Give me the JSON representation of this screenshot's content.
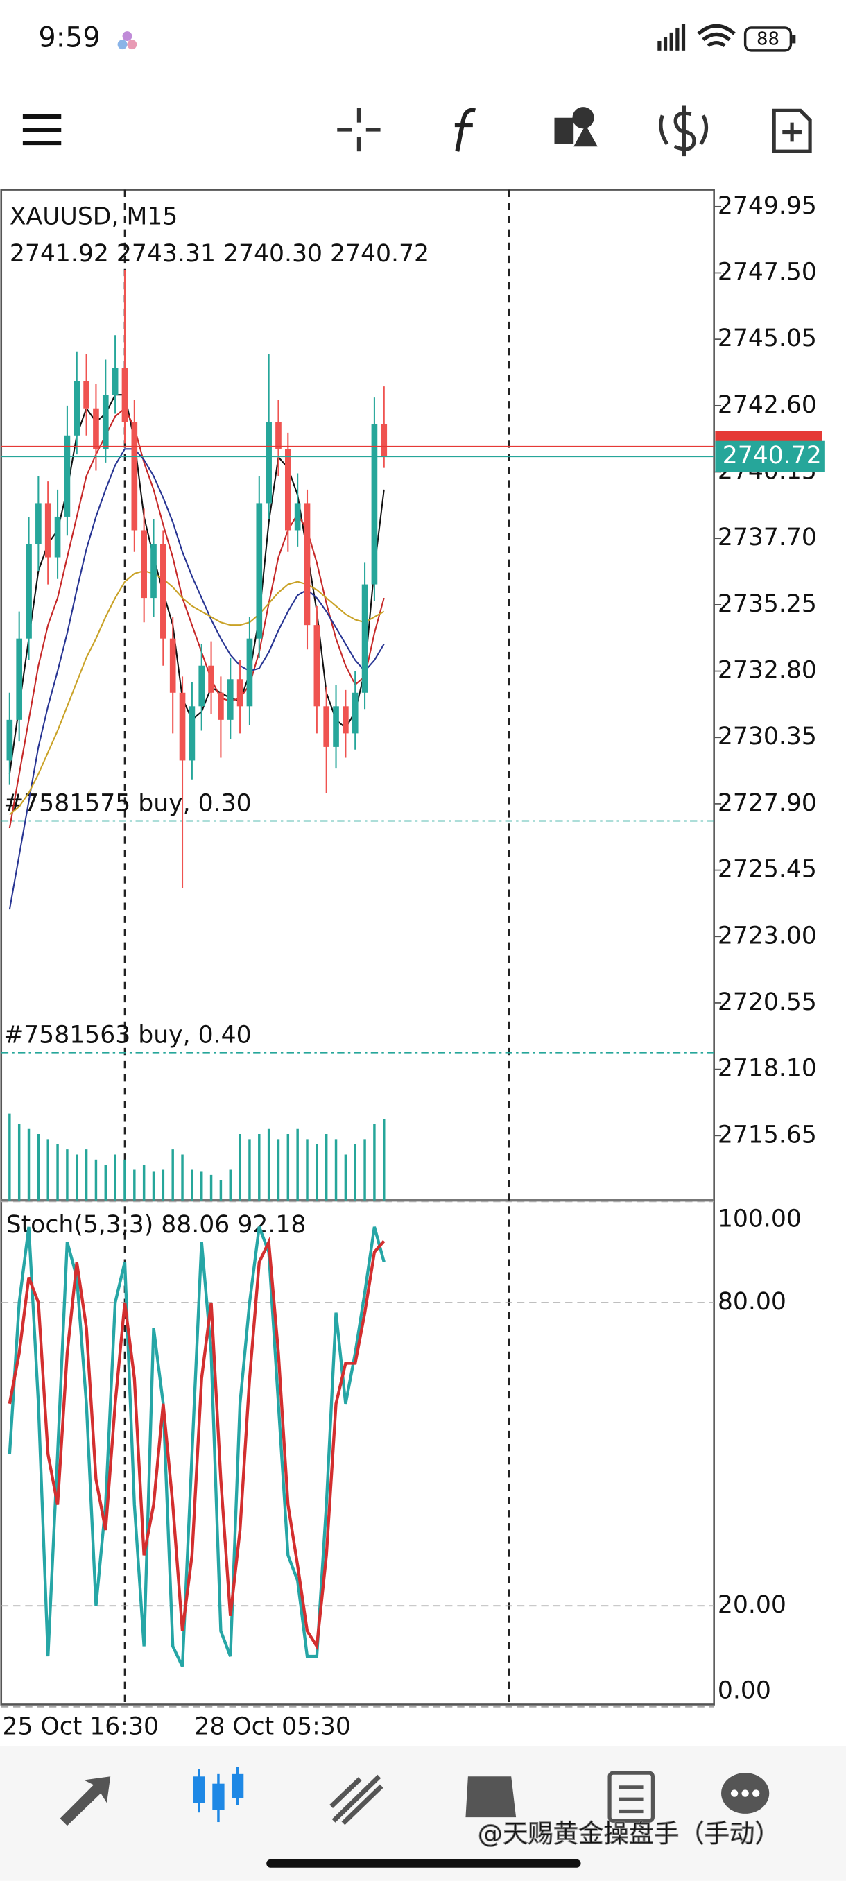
{
  "status_bar": {
    "time": "9:59",
    "battery": "88"
  },
  "chart_data": [
    {
      "type": "candlestick",
      "title": "XAUUSD, M15",
      "subtitle": "2741.92 2743.31 2740.30 2740.72",
      "categories": [
        "25 Oct 16:30",
        null,
        null,
        null,
        null,
        null,
        null,
        null,
        null,
        null,
        null,
        null,
        null,
        null,
        null,
        null,
        null,
        null,
        null,
        null,
        "28 Oct 05:30",
        null,
        null,
        null,
        null,
        null,
        null,
        null,
        null,
        null,
        null,
        null,
        null,
        null,
        null,
        null,
        null,
        null,
        null,
        null
      ],
      "open": [
        2729.5,
        2731,
        2734,
        2737.5,
        2739,
        2737,
        2738.5,
        2741.5,
        2743.5,
        2742.5,
        2741,
        2743,
        2744,
        2742,
        2738,
        2735.5,
        2737.5,
        2734,
        2732,
        2729.5,
        2731.5,
        2733,
        2732,
        2731,
        2732.5,
        2731.5,
        2734,
        2739,
        2742,
        2741,
        2738,
        2739,
        2734.5,
        2731.5,
        2730,
        2731.5,
        2730.5,
        2732,
        2736,
        2741.92
      ],
      "high": [
        2732,
        2735,
        2738.5,
        2740,
        2739.8,
        2739.5,
        2742.6,
        2744.6,
        2744.5,
        2743.4,
        2744.3,
        2745.2,
        2747.6,
        2742.8,
        2738.8,
        2738.4,
        2738,
        2734.8,
        2732.6,
        2732.4,
        2733.8,
        2733.9,
        2732.6,
        2733.3,
        2733.2,
        2734.8,
        2740,
        2744.5,
        2742.8,
        2741.6,
        2740.1,
        2739.5,
        2735.2,
        2732.2,
        2732.3,
        2732.1,
        2732.8,
        2736.8,
        2742.9,
        2743.31
      ],
      "low": [
        2728.6,
        2730.2,
        2733.2,
        2736.5,
        2736,
        2736.2,
        2737.8,
        2740.8,
        2741.5,
        2740.2,
        2740.5,
        2742.3,
        2741.2,
        2737.2,
        2734.6,
        2734.8,
        2733,
        2730.5,
        2724.8,
        2728.8,
        2730.6,
        2731.2,
        2729.6,
        2730.3,
        2730.5,
        2730.8,
        2733.3,
        2738.4,
        2740,
        2737.2,
        2737.4,
        2733.6,
        2730.5,
        2728.3,
        2729.2,
        2729.6,
        2729.9,
        2731.4,
        2735.4,
        2740.3
      ],
      "close": [
        2731,
        2734,
        2737.5,
        2739,
        2737,
        2738.5,
        2741.5,
        2743.5,
        2742.5,
        2741,
        2743,
        2744,
        2742,
        2738,
        2735.5,
        2737.5,
        2734,
        2732,
        2729.5,
        2731.5,
        2733,
        2732,
        2731,
        2732.5,
        2731.5,
        2734,
        2739,
        2742,
        2741,
        2738,
        2739,
        2734.5,
        2731.5,
        2730,
        2731.5,
        2730.5,
        2732,
        2736,
        2741.92,
        2740.72
      ],
      "up_color": "#26a69a",
      "down_color": "#ef5350",
      "ylim": [
        2713.26,
        2750.57
      ],
      "yticks": [
        2749.95,
        {
          "value": 2747.5,
          "label": "2747.50"
        },
        2745.05,
        {
          "value": 2742.6,
          "label": "2742.60"
        },
        2740.15,
        {
          "value": 2737.7,
          "label": "2737.70"
        },
        2735.25,
        {
          "value": 2732.8,
          "label": "2732.80"
        },
        2730.35,
        {
          "value": 2727.9,
          "label": "2727.90"
        },
        2725.45,
        {
          "value": 2723,
          "label": "2723.00"
        },
        2720.55,
        {
          "value": 2718.1,
          "label": "2718.10"
        },
        2715.65
      ],
      "price_line": {
        "value": 2740.72,
        "label": "2740.72",
        "color": "#26a69a"
      },
      "ask_line": {
        "value": 2741.09,
        "color": "#e53935"
      },
      "orders": [
        {
          "label": "#7581575 buy, 0.30",
          "value": 2727.27
        },
        {
          "label": "#7581563 buy, 0.40",
          "value": 2718.71
        }
      ],
      "moving_averages": [
        {
          "color": "#111111",
          "values": [
            2729,
            2731.5,
            2734,
            2736.5,
            2737.5,
            2738,
            2739.5,
            2741.5,
            2742.5,
            2742,
            2742.3,
            2743,
            2743,
            2741.3,
            2738.5,
            2737,
            2735.7,
            2734.5,
            2731.8,
            2731,
            2731.3,
            2732.2,
            2732,
            2731.8,
            2731.7,
            2732.7,
            2734.8,
            2738.3,
            2740.7,
            2740.3,
            2739.3,
            2737.2,
            2735,
            2732,
            2731,
            2730.7,
            2731.3,
            2732.8,
            2736.6,
            2739.5
          ]
        },
        {
          "color": "#c62828",
          "values": [
            2727,
            2729,
            2731,
            2733,
            2734.5,
            2735.5,
            2737,
            2738.5,
            2740,
            2740.8,
            2741.5,
            2742.2,
            2742.5,
            2741.8,
            2740.5,
            2739.5,
            2738.2,
            2737,
            2735.5,
            2734.5,
            2733.5,
            2732.5,
            2731.8,
            2731.7,
            2731.8,
            2732.3,
            2733.5,
            2735.3,
            2737,
            2738,
            2738.6,
            2738,
            2736.8,
            2735.3,
            2734,
            2733,
            2732.3,
            2732.6,
            2734.2,
            2735.5
          ]
        },
        {
          "color": "#283593",
          "values": [
            2724,
            2726,
            2728,
            2730,
            2731.5,
            2732.8,
            2734.2,
            2735.8,
            2737.3,
            2738.5,
            2739.5,
            2740.4,
            2741,
            2741,
            2740.6,
            2740,
            2739.2,
            2738.3,
            2737.2,
            2736.3,
            2735.5,
            2734.7,
            2734,
            2733.4,
            2733,
            2732.8,
            2732.9,
            2733.5,
            2734.3,
            2735,
            2735.6,
            2735.8,
            2735.5,
            2735,
            2734.4,
            2733.8,
            2733.2,
            2732.8,
            2733.2,
            2733.8
          ]
        },
        {
          "color": "#c9a227",
          "values": [
            2727.5,
            2727.8,
            2728.3,
            2729,
            2729.8,
            2730.6,
            2731.5,
            2732.4,
            2733.3,
            2734,
            2734.8,
            2735.5,
            2736.1,
            2736.4,
            2736.5,
            2736.4,
            2736.2,
            2735.9,
            2735.5,
            2735.2,
            2735,
            2734.8,
            2734.6,
            2734.5,
            2734.5,
            2734.6,
            2734.9,
            2735.3,
            2735.7,
            2736,
            2736.1,
            2736,
            2735.8,
            2735.5,
            2735.2,
            2734.9,
            2734.7,
            2734.6,
            2734.8,
            2735
          ]
        }
      ],
      "volume": {
        "color": "#26a69a",
        "ylim": [
          0,
          100
        ],
        "values": [
          85,
          75,
          70,
          65,
          60,
          55,
          50,
          45,
          50,
          40,
          35,
          45,
          40,
          30,
          35,
          28,
          30,
          50,
          45,
          30,
          28,
          25,
          20,
          30,
          65,
          60,
          65,
          70,
          60,
          65,
          70,
          60,
          55,
          65,
          60,
          45,
          55,
          60,
          75,
          80
        ]
      }
    },
    {
      "type": "line",
      "title": "Stoch(5,3,3) 88.06 92.18",
      "series": [
        {
          "color": "#26a6a6",
          "values": [
            50,
            80,
            95,
            60,
            10,
            50,
            92,
            85,
            60,
            20,
            40,
            80,
            88,
            40,
            12,
            75,
            60,
            12,
            8,
            50,
            92,
            70,
            15,
            10,
            60,
            80,
            95,
            90,
            60,
            30,
            25,
            10,
            10,
            40,
            78,
            60,
            70,
            82,
            95,
            88.06
          ]
        },
        {
          "color": "#d32f2f",
          "values": [
            60,
            70,
            85,
            80,
            50,
            40,
            70,
            88,
            75,
            45,
            35,
            60,
            80,
            65,
            30,
            40,
            60,
            40,
            15,
            30,
            65,
            80,
            45,
            18,
            35,
            65,
            88,
            92,
            70,
            40,
            28,
            15,
            12,
            30,
            60,
            68,
            68,
            78,
            90,
            92.18
          ]
        }
      ],
      "ylim": [
        0,
        100
      ],
      "yticks": [
        {
          "value": 100,
          "label": "100.00"
        },
        {
          "value": 80,
          "label": "80.00"
        },
        {
          "value": 20,
          "label": "20.00"
        },
        {
          "value": 0,
          "label": "0.00"
        }
      ],
      "grid": true
    }
  ],
  "watermark": "@天赐黄金操盘手（手动）"
}
